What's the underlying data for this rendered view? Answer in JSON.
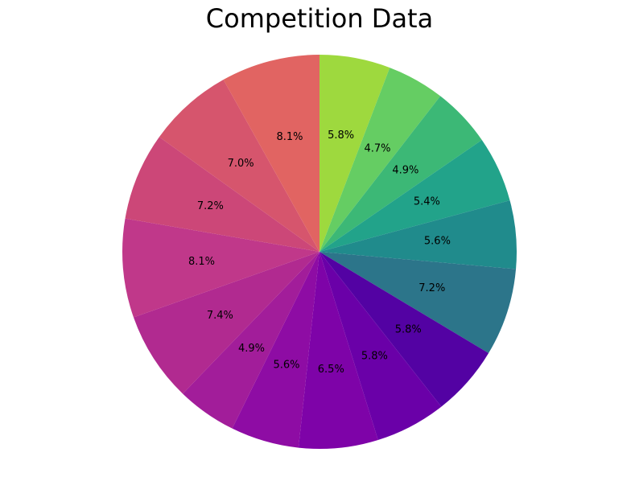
{
  "chart_data": {
    "type": "pie",
    "title": "Competition Data",
    "start_angle_deg": 90,
    "direction": "clockwise",
    "values": [
      5.8,
      4.7,
      4.9,
      5.4,
      5.6,
      7.2,
      5.8,
      5.8,
      6.5,
      5.6,
      4.9,
      7.4,
      8.1,
      7.2,
      7.0,
      8.1
    ],
    "labels": [
      "5.8%",
      "4.7%",
      "4.9%",
      "5.4%",
      "5.6%",
      "7.2%",
      "5.8%",
      "5.8%",
      "6.5%",
      "5.6%",
      "4.9%",
      "7.4%",
      "8.1%",
      "7.2%",
      "7.0%",
      "8.1%"
    ],
    "colors": [
      "#9ed93e",
      "#65cd63",
      "#3cb876",
      "#22a38a",
      "#208b8c",
      "#2c758a",
      "#5302a3",
      "#6a00a8",
      "#7e03a8",
      "#8e0ca4",
      "#a21d9a",
      "#b12a90",
      "#c0388a",
      "#cc4778",
      "#d6556d",
      "#e16462"
    ]
  }
}
